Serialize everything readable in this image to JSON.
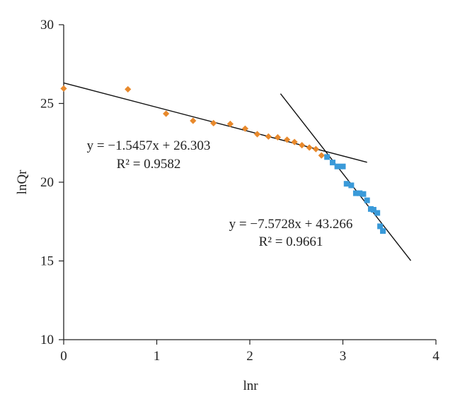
{
  "chart_data": {
    "type": "scatter",
    "title": "",
    "xlabel": "lnr",
    "ylabel": "lnQr",
    "xlim": [
      0,
      4
    ],
    "ylim": [
      10,
      30
    ],
    "xticks": [
      "0",
      "1",
      "2",
      "3",
      "4"
    ],
    "yticks": [
      "10",
      "15",
      "20",
      "25",
      "30"
    ],
    "grid": false,
    "legend": "none",
    "series": [
      {
        "marker": "diamond",
        "color": "#E8892C",
        "points": [
          [
            0.0,
            25.95
          ],
          [
            0.69,
            25.9
          ],
          [
            1.1,
            24.35
          ],
          [
            1.39,
            23.9
          ],
          [
            1.61,
            23.75
          ],
          [
            1.79,
            23.7
          ],
          [
            1.95,
            23.4
          ],
          [
            2.08,
            23.05
          ],
          [
            2.2,
            22.9
          ],
          [
            2.3,
            22.85
          ],
          [
            2.4,
            22.7
          ],
          [
            2.48,
            22.55
          ],
          [
            2.56,
            22.35
          ],
          [
            2.64,
            22.2
          ],
          [
            2.71,
            22.1
          ],
          [
            2.77,
            21.7
          ]
        ]
      },
      {
        "marker": "square",
        "color": "#3A9AD9",
        "points": [
          [
            2.83,
            21.6
          ],
          [
            2.89,
            21.25
          ],
          [
            2.94,
            21.0
          ],
          [
            3.0,
            21.0
          ],
          [
            3.04,
            19.9
          ],
          [
            3.09,
            19.8
          ],
          [
            3.14,
            19.3
          ],
          [
            3.18,
            19.3
          ],
          [
            3.22,
            19.25
          ],
          [
            3.26,
            18.85
          ],
          [
            3.3,
            18.3
          ],
          [
            3.33,
            18.25
          ],
          [
            3.37,
            18.05
          ],
          [
            3.4,
            17.2
          ],
          [
            3.43,
            16.9
          ]
        ]
      }
    ],
    "trendlines": [
      {
        "slope": -1.5457,
        "intercept": 26.303,
        "x_range": [
          0,
          3.26
        ],
        "color": "#111111"
      },
      {
        "slope": -7.5728,
        "intercept": 43.266,
        "x_range": [
          2.33,
          3.73
        ],
        "color": "#111111"
      }
    ],
    "annotations": [
      {
        "equation": "y = −1.5457x + 26.303",
        "r2": "R² = 0.9582"
      },
      {
        "equation": "y = −7.5728x + 43.266",
        "r2": "R² = 0.9661"
      }
    ]
  }
}
